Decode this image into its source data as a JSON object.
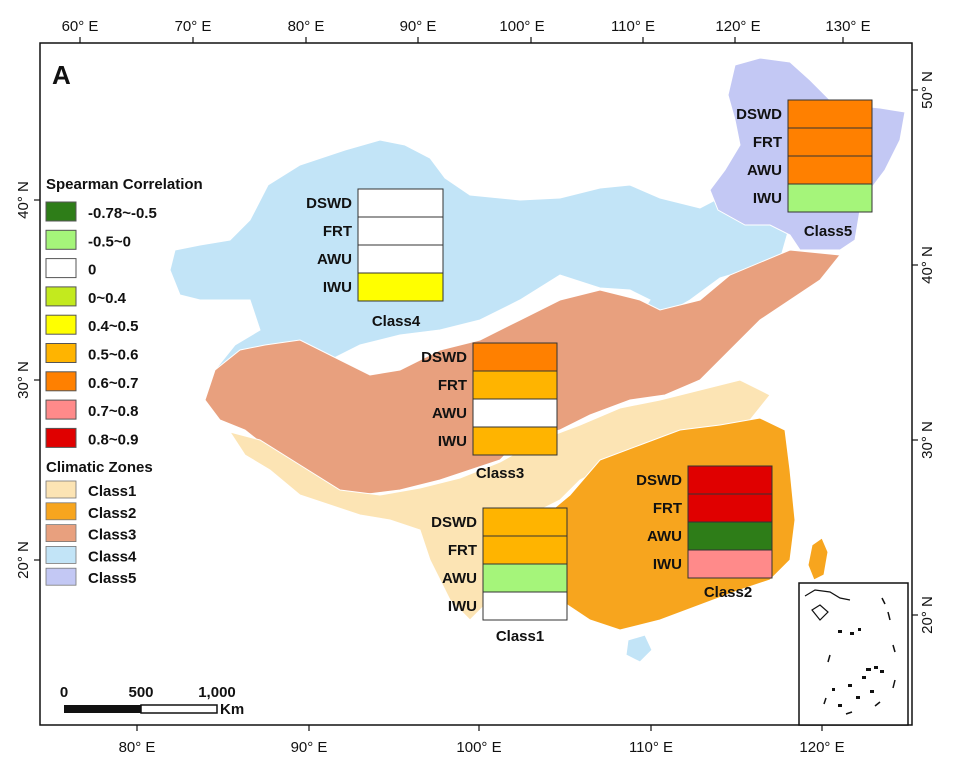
{
  "panel_label": "A",
  "axes": {
    "top_lon_labels": [
      "60° E",
      "70° E",
      "80° E",
      "90° E",
      "100° E",
      "110° E",
      "120° E",
      "130° E"
    ],
    "bottom_lon_labels": [
      "80° E",
      "90° E",
      "100° E",
      "110° E",
      "120° E"
    ],
    "left_lat_labels": [
      "40° N",
      "30° N",
      "20° N"
    ],
    "right_lat_labels": [
      "50° N",
      "40° N",
      "30° N",
      "20° N"
    ]
  },
  "legend": {
    "correlation_title": "Spearman Correlation",
    "correlation_items": [
      {
        "label": "-0.78~-0.5",
        "color": "#2e7d18"
      },
      {
        "label": "-0.5~0",
        "color": "#a5f57a"
      },
      {
        "label": "0",
        "color": "#ffffff"
      },
      {
        "label": "0~0.4",
        "color": "#c3ea1e"
      },
      {
        "label": "0.4~0.5",
        "color": "#ffff00"
      },
      {
        "label": "0.5~0.6",
        "color": "#ffb400"
      },
      {
        "label": "0.6~0.7",
        "color": "#ff8000"
      },
      {
        "label": "0.7~0.8",
        "color": "#ff8a8a"
      },
      {
        "label": "0.8~0.9",
        "color": "#e00000"
      }
    ],
    "zones_title": "Climatic Zones",
    "zone_items": [
      {
        "label": "Class1",
        "color": "#fce4b4"
      },
      {
        "label": "Class2",
        "color": "#f7a51e"
      },
      {
        "label": "Class3",
        "color": "#e8a07e"
      },
      {
        "label": "Class4",
        "color": "#c2e4f7"
      },
      {
        "label": "Class5",
        "color": "#c3c8f4"
      }
    ]
  },
  "zone_boxes": [
    {
      "class_label": "Class4",
      "rows": [
        {
          "name": "DSWD",
          "color": "#ffffff"
        },
        {
          "name": "FRT",
          "color": "#ffffff"
        },
        {
          "name": "AWU",
          "color": "#ffffff"
        },
        {
          "name": "IWU",
          "color": "#ffff00"
        }
      ]
    },
    {
      "class_label": "Class5",
      "rows": [
        {
          "name": "DSWD",
          "color": "#ff8000"
        },
        {
          "name": "FRT",
          "color": "#ff8000"
        },
        {
          "name": "AWU",
          "color": "#ff8000"
        },
        {
          "name": "IWU",
          "color": "#a5f57a"
        }
      ]
    },
    {
      "class_label": "Class3",
      "rows": [
        {
          "name": "DSWD",
          "color": "#ff8000"
        },
        {
          "name": "FRT",
          "color": "#ffb400"
        },
        {
          "name": "AWU",
          "color": "#ffffff"
        },
        {
          "name": "IWU",
          "color": "#ffb400"
        }
      ]
    },
    {
      "class_label": "Class2",
      "rows": [
        {
          "name": "DSWD",
          "color": "#e00000"
        },
        {
          "name": "FRT",
          "color": "#e00000"
        },
        {
          "name": "AWU",
          "color": "#2e7d18"
        },
        {
          "name": "IWU",
          "color": "#ff8a8a"
        }
      ]
    },
    {
      "class_label": "Class1",
      "rows": [
        {
          "name": "DSWD",
          "color": "#ffb400"
        },
        {
          "name": "FRT",
          "color": "#ffb400"
        },
        {
          "name": "AWU",
          "color": "#a5f57a"
        },
        {
          "name": "IWU",
          "color": "#ffffff"
        }
      ]
    }
  ],
  "scale_bar": {
    "labels": [
      "0",
      "500",
      "1,000"
    ],
    "unit": "Km"
  }
}
